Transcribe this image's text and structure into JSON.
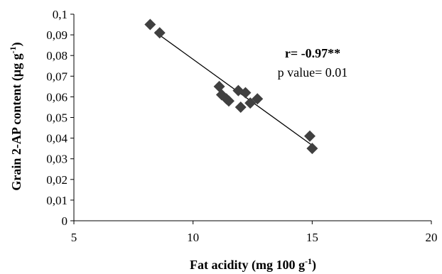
{
  "chart_data": {
    "type": "scatter",
    "title": "",
    "xlabel": "Fat acidity (mg 100 g",
    "xlabel_sup": "-1",
    "xlabel_suffix": ")",
    "ylabel": "Grain 2-AP content (µg g",
    "ylabel_sup": "-1",
    "ylabel_suffix": ")",
    "xlim": [
      5,
      20
    ],
    "ylim": [
      0,
      0.1
    ],
    "x_ticks": [
      5,
      10,
      15,
      20
    ],
    "x_tick_labels": [
      "5",
      "10",
      "15",
      "20"
    ],
    "y_ticks": [
      0,
      0.01,
      0.02,
      0.03,
      0.04,
      0.05,
      0.06,
      0.07,
      0.08,
      0.09,
      0.1
    ],
    "y_tick_labels": [
      "0",
      "0,01",
      "0,02",
      "0,03",
      "0,04",
      "0,05",
      "0,06",
      "0,07",
      "0,08",
      "0,09",
      "0,1"
    ],
    "grid": false,
    "legend": "none",
    "marker": "diamond",
    "marker_color": "#404040",
    "trendline_color": "#000000",
    "points": [
      {
        "x": 8.2,
        "y": 0.095
      },
      {
        "x": 8.6,
        "y": 0.091
      },
      {
        "x": 11.1,
        "y": 0.065
      },
      {
        "x": 11.2,
        "y": 0.061
      },
      {
        "x": 11.4,
        "y": 0.059
      },
      {
        "x": 11.5,
        "y": 0.058
      },
      {
        "x": 11.9,
        "y": 0.063
      },
      {
        "x": 12.0,
        "y": 0.055
      },
      {
        "x": 12.2,
        "y": 0.062
      },
      {
        "x": 12.4,
        "y": 0.057
      },
      {
        "x": 12.7,
        "y": 0.059
      },
      {
        "x": 14.9,
        "y": 0.041
      },
      {
        "x": 15.0,
        "y": 0.035
      }
    ],
    "trendline": {
      "x": [
        8.4,
        15.0
      ],
      "y": [
        0.0915,
        0.0365
      ]
    },
    "annotations": {
      "r_text": "r=  -0.97**",
      "p_text": "p value= 0.01"
    }
  }
}
